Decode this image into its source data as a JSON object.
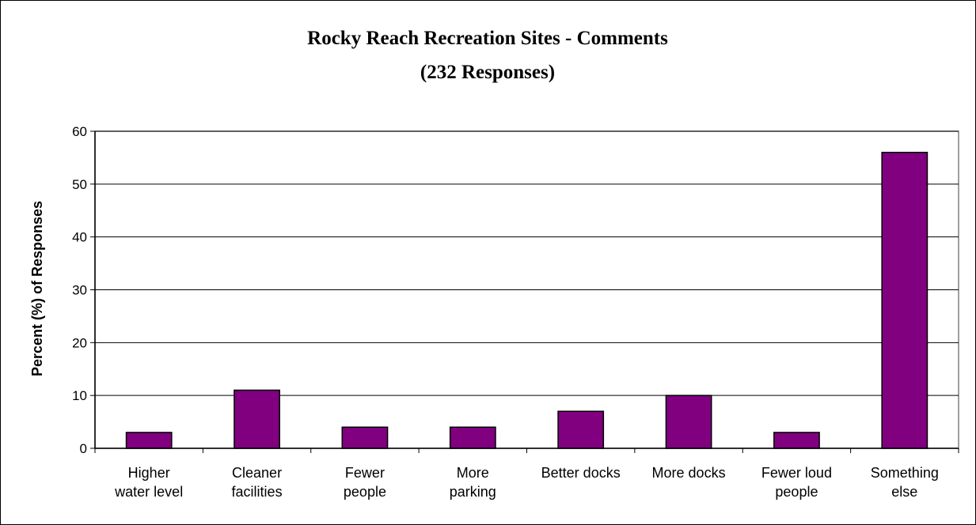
{
  "chart_data": {
    "type": "bar",
    "title": "Rocky Reach Recreation Sites - Comments",
    "subtitle": "(232 Responses)",
    "xlabel": "",
    "ylabel": "Percent (%) of Responses",
    "ylim": [
      0,
      60
    ],
    "yticks": [
      0,
      10,
      20,
      30,
      40,
      50,
      60
    ],
    "grid": true,
    "legend": "none",
    "bar_color": "#800080",
    "categories": [
      [
        "Higher",
        "water level"
      ],
      [
        "Cleaner",
        "facilities"
      ],
      [
        "Fewer",
        "people"
      ],
      [
        "More",
        "parking"
      ],
      [
        "Better docks"
      ],
      [
        "More docks"
      ],
      [
        "Fewer loud",
        "people"
      ],
      [
        "Something",
        "else"
      ]
    ],
    "values": [
      3,
      11,
      4,
      4,
      7,
      10,
      3,
      56
    ]
  }
}
